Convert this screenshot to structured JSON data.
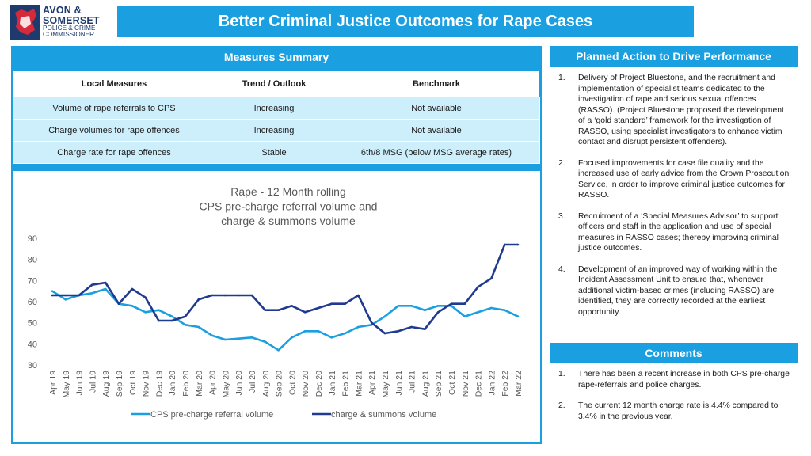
{
  "logo": {
    "line1": "AVON &",
    "line2": "SOMERSET",
    "line3": "POLICE & CRIME",
    "line4": "COMMISSIONER"
  },
  "title": "Better Criminal Justice Outcomes for Rape Cases",
  "measures": {
    "heading": "Measures Summary",
    "columns": [
      "Local Measures",
      "Trend / Outlook",
      "Benchmark"
    ],
    "rows": [
      [
        "Volume of rape referrals to CPS",
        "Increasing",
        "Not available"
      ],
      [
        "Charge volumes for rape offences",
        "Increasing",
        "Not available"
      ],
      [
        "Charge rate for rape offences",
        "Stable",
        "6th/8 MSG (below MSG average rates)"
      ]
    ]
  },
  "planned": {
    "heading": "Planned Action to Drive Performance",
    "items": [
      {
        "num": "1.",
        "text": "Delivery of Project Bluestone, and the recruitment and implementation of specialist teams dedicated to the investigation of rape and serious sexual offences (RASSO). (Project Bluestone proposed the development of a ‘gold standard’ framework for the investigation of RASSO, using specialist investigators to enhance victim contact and disrupt persistent offenders)."
      },
      {
        "num": "2.",
        "text": "Focused improvements for case file quality and the increased use of early advice from the Crown Prosecution Service, in order to improve criminal justice outcomes for RASSO."
      },
      {
        "num": "3.",
        "text": "Recruitment of a ‘Special Measures Advisor’ to support officers and staff in the application and use of special measures in RASSO cases; thereby improving criminal justice outcomes."
      },
      {
        "num": "4.",
        "text": "Development of an improved way of working within the Incident Assessment Unit to ensure that, whenever additional victim-based crimes (including RASSO) are identified, they are correctly recorded at the earliest opportunity."
      }
    ]
  },
  "comments": {
    "heading": "Comments",
    "items": [
      {
        "num": "1.",
        "text": "There has been a recent increase in both CPS pre-charge rape-referrals and police charges."
      },
      {
        "num": "2.",
        "text": "The current 12 month charge rate is 4.4% compared to 3.4% in the previous year."
      }
    ]
  },
  "chart_data": {
    "type": "line",
    "title_lines": [
      "Rape - 12 Month rolling",
      "CPS pre-charge referral volume and",
      "charge & summons volume"
    ],
    "categories": [
      "Apr 19",
      "May 19",
      "Jun 19",
      "Jul 19",
      "Aug 19",
      "Sep 19",
      "Oct 19",
      "Nov 19",
      "Dec 19",
      "Jan 20",
      "Feb 20",
      "Mar 20",
      "Apr 20",
      "May 20",
      "Jun 20",
      "Jul 20",
      "Aug 20",
      "Sep 20",
      "Oct 20",
      "Nov 20",
      "Dec 20",
      "Jan 21",
      "Feb 21",
      "Mar 21",
      "Apr 21",
      "May 21",
      "Jun 21",
      "Jul 21",
      "Aug 21",
      "Sep 21",
      "Oct 21",
      "Nov 21",
      "Dec 21",
      "Jan 22",
      "Feb 22",
      "Mar 22"
    ],
    "ylim": [
      30,
      90
    ],
    "yticks": [
      30,
      40,
      50,
      60,
      70,
      80,
      90
    ],
    "series": [
      {
        "name": "CPS pre-charge referral volume",
        "color": "#1a9fe0",
        "values": [
          65,
          61,
          63,
          64,
          66,
          59,
          58,
          55,
          56,
          53,
          49,
          48,
          44,
          42,
          42.5,
          43,
          41,
          37,
          43,
          46,
          46,
          43,
          45,
          48,
          49,
          53,
          58,
          58,
          56,
          58,
          58,
          53,
          55,
          57,
          56,
          53
        ]
      },
      {
        "name": "charge & summons volume",
        "color": "#1f3a8f",
        "values": [
          63,
          63,
          63,
          68,
          69,
          59,
          66,
          62,
          51,
          51,
          53,
          61,
          63,
          63,
          63,
          63,
          56,
          56,
          58,
          55,
          57,
          59,
          59,
          63,
          50,
          45,
          46,
          48,
          47,
          55,
          59,
          59,
          67,
          71,
          87,
          87
        ]
      }
    ],
    "legend_position": "bottom",
    "grid": false
  }
}
